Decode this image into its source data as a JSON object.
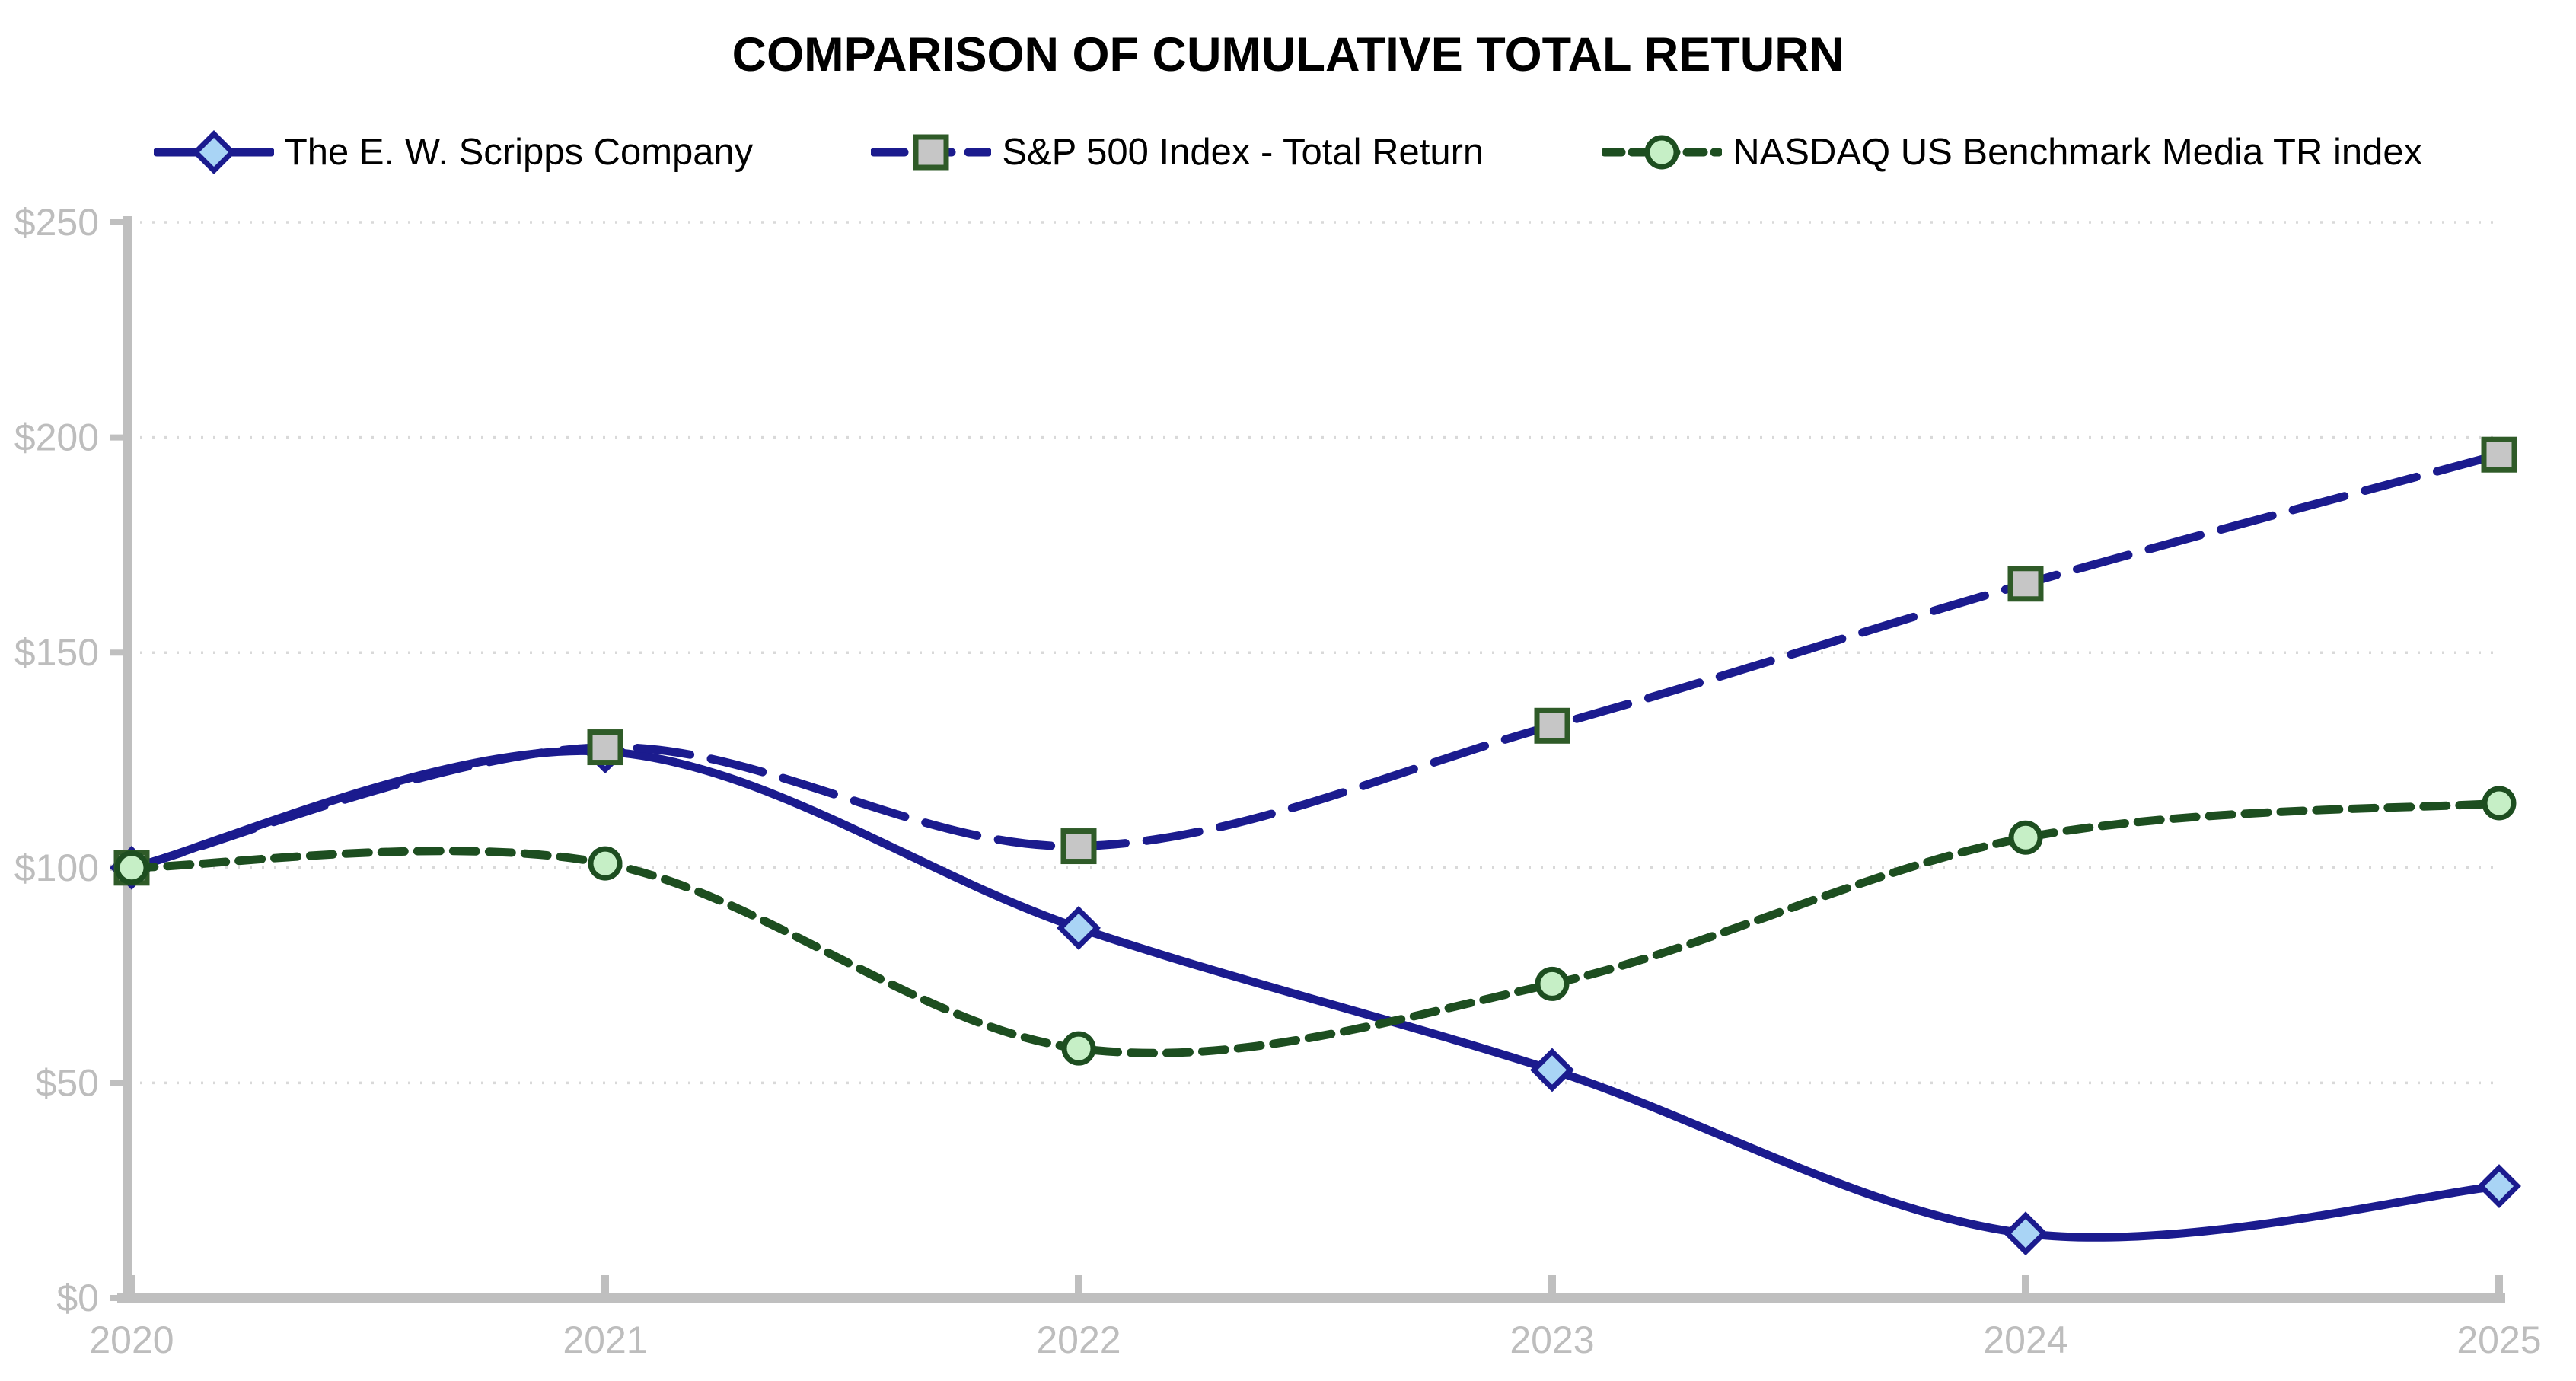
{
  "title": "COMPARISON OF CUMULATIVE TOTAL RETURN",
  "chart_data": {
    "type": "line",
    "categories": [
      "2020",
      "2021",
      "2022",
      "2023",
      "2024",
      "2025"
    ],
    "series": [
      {
        "name": "The E. W. Scripps Company",
        "values": [
          100,
          127,
          86,
          53,
          15,
          26
        ],
        "line_style": "solid",
        "marker": "diamond",
        "line_color": "#1B1B8E",
        "marker_fill": "#A9D4F5",
        "marker_stroke": "#1B1B8E"
      },
      {
        "name": "S&P 500 Index - Total Return",
        "values": [
          100,
          128,
          105,
          133,
          166,
          196
        ],
        "line_style": "long-dash",
        "marker": "square",
        "line_color": "#1B1B8E",
        "marker_fill": "#C6C6C6",
        "marker_stroke": "#2F5B28"
      },
      {
        "name": "NASDAQ US Benchmark Media TR index",
        "values": [
          100,
          101,
          58,
          73,
          107,
          115
        ],
        "line_style": "short-dash",
        "marker": "circle",
        "line_color": "#1D4E20",
        "marker_fill": "#C6EFC6",
        "marker_stroke": "#1D4E20"
      }
    ],
    "ylim": [
      0,
      250
    ],
    "ytick_labels": [
      "$0",
      "$50",
      "$100",
      "$150",
      "$200",
      "$250"
    ],
    "xlabel": "",
    "ylabel": "",
    "grid": "horizontal-dotted",
    "legend_position": "top",
    "axis_color": "#BFBFBF",
    "gridline_color": "#D9D9D9",
    "tick_label_color": "#BDBDBD"
  }
}
